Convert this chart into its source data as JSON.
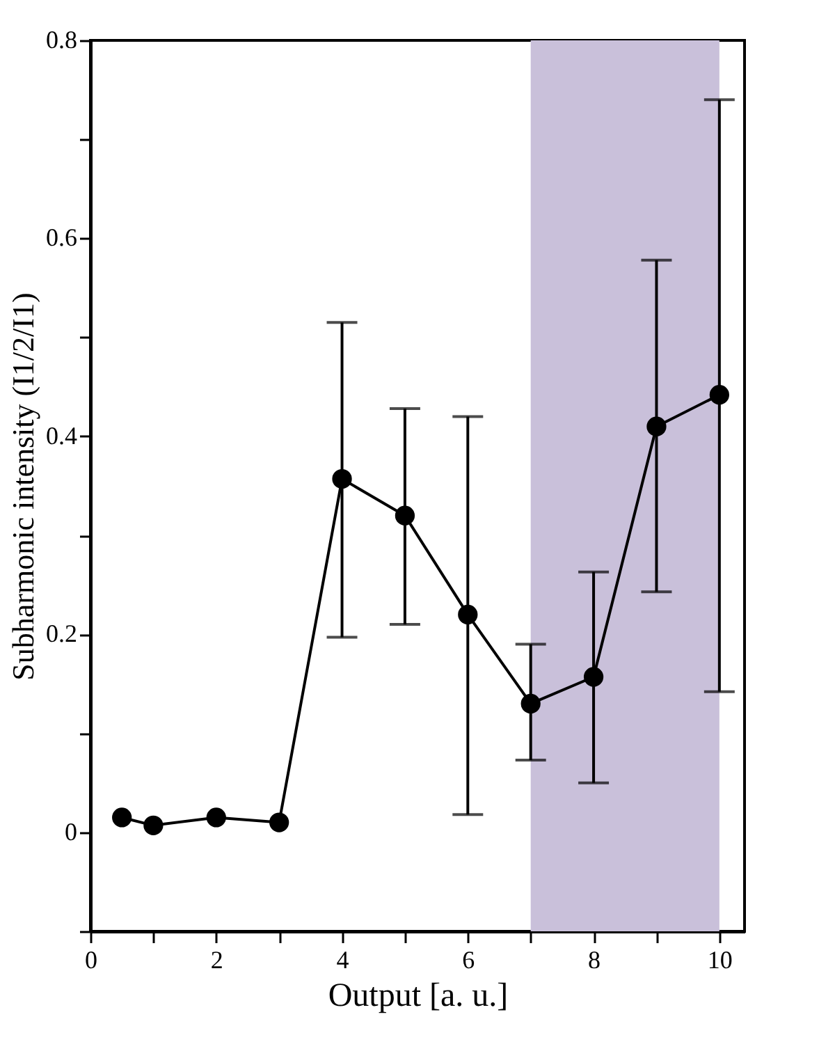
{
  "chart_data": {
    "type": "line",
    "xlabel": "Output [a. u.]",
    "ylabel": "Subharmonic intensity (I1/2/I1)",
    "x": [
      0.5,
      1,
      2,
      3,
      4,
      5,
      6,
      7,
      8,
      9,
      10
    ],
    "series": [
      {
        "color": "#000000",
        "values": [
          0.015,
          0.007,
          0.015,
          0.01,
          0.357,
          0.32,
          0.22,
          0.13,
          0.157,
          0.41,
          0.442
        ],
        "errors": [
          null,
          null,
          null,
          null,
          [
            0.197,
            0.515
          ],
          [
            0.21,
            0.428
          ],
          [
            0.018,
            0.42
          ],
          [
            0.073,
            0.19
          ],
          [
            0.05,
            0.263
          ],
          [
            0.243,
            0.578
          ],
          [
            0.142,
            0.74
          ]
        ]
      }
    ],
    "marker": "circle",
    "line_style": "solid",
    "xlim": [
      0,
      10.4
    ],
    "xticks": [
      0,
      {
        "value": 1,
        "label": null
      },
      2,
      {
        "value": 3,
        "label": null
      },
      4,
      {
        "value": 5,
        "label": null
      },
      6,
      {
        "value": 7,
        "label": null
      },
      8,
      {
        "value": 9,
        "label": null
      },
      10
    ],
    "ylim": [
      -0.1,
      0.8
    ],
    "yticks": [
      {
        "value": -0.1,
        "label": null
      },
      0,
      {
        "value": 0.1,
        "label": null
      },
      0.2,
      {
        "value": 0.3,
        "label": null
      },
      0.4,
      {
        "value": 0.5,
        "label": null
      },
      0.6,
      {
        "value": 0.7,
        "label": null
      },
      0.8
    ],
    "bands": [
      {
        "axis": "x",
        "from": 7,
        "to": 10,
        "color": "#c9c0da"
      }
    ],
    "grid": false
  }
}
